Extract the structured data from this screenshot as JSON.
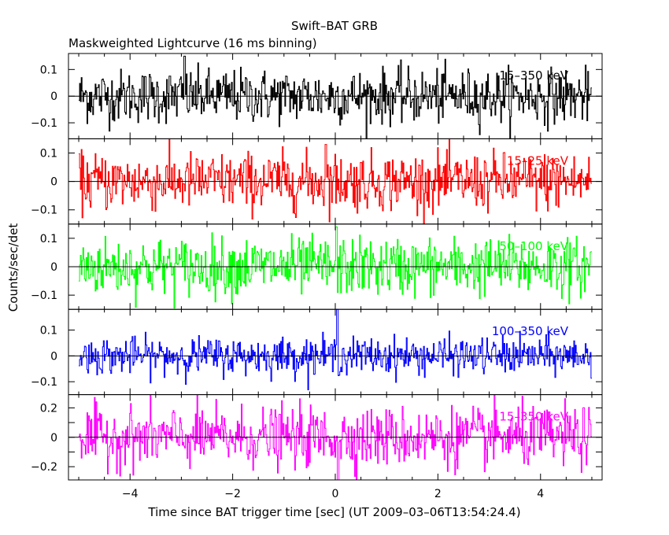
{
  "title": "Swift–BAT GRB",
  "subtitle": "Maskweighted Lightcurve (16 ms binning)",
  "ylabel": "Counts/sec/det",
  "xlabel": "Time since BAT trigger time [sec] (UT 2009–03–06T13:54:24.4)",
  "colors": {
    "axis": "#000000",
    "band1": "#000000",
    "band2": "#ff0000",
    "band3": "#00ff00",
    "band4": "#0000ff",
    "band5": "#ff00ff"
  },
  "chart_data": {
    "type": "line",
    "xlim": [
      -5.2,
      5.2
    ],
    "xticks": [
      -4,
      -2,
      0,
      2,
      4
    ],
    "xtick_labels": [
      "−4",
      "−2",
      "0",
      "2",
      "4"
    ],
    "data_range_x": [
      -5.0,
      5.0
    ],
    "bin_sec": 0.016,
    "grid": false,
    "legend": "in-panel labels, top-right",
    "panels": [
      {
        "name": "15–350 keV",
        "color": "#000000",
        "ylim": [
          -0.16,
          0.16
        ],
        "yticks": [
          -0.1,
          0,
          0.1
        ],
        "ytick_labels": [
          "−0.1",
          "0",
          "0.1"
        ],
        "noise_sigma": 0.05,
        "spike": {
          "x": -2.95,
          "value": 0.15
        }
      },
      {
        "name": "15–25 keV",
        "color": "#ff0000",
        "ylim": [
          -0.15,
          0.15
        ],
        "yticks": [
          -0.1,
          0,
          0.1
        ],
        "ytick_labels": [
          "−0.1",
          "0",
          "0.1"
        ],
        "noise_sigma": 0.05,
        "spike": {
          "x": -0.2,
          "value": 0.13
        }
      },
      {
        "name": "50–100 keV",
        "color": "#00ff00",
        "ylim": [
          -0.15,
          0.15
        ],
        "yticks": [
          -0.1,
          0,
          0.1
        ],
        "ytick_labels": [
          "−0.1",
          "0",
          "0.1"
        ],
        "noise_sigma": 0.05,
        "spike": {
          "x": 0.02,
          "value": 0.14
        }
      },
      {
        "name": "100–350 keV",
        "color": "#0000ff",
        "ylim": [
          -0.15,
          0.18
        ],
        "yticks": [
          -0.1,
          0,
          0.1
        ],
        "ytick_labels": [
          "−0.1",
          "0",
          "0.1"
        ],
        "noise_sigma": 0.035,
        "spike": {
          "x": 0.03,
          "value": 0.18
        }
      },
      {
        "name": "15–350 keV",
        "color": "#ff00ff",
        "ylim": [
          -0.29,
          0.29
        ],
        "yticks": [
          -0.2,
          -0.1,
          0,
          0.1,
          0.2
        ],
        "ytick_labels": [
          "−0.2",
          "",
          "0",
          "",
          "0.2"
        ],
        "noise_sigma": 0.1,
        "spike": {
          "x": 0.05,
          "value": -0.29
        }
      }
    ]
  }
}
